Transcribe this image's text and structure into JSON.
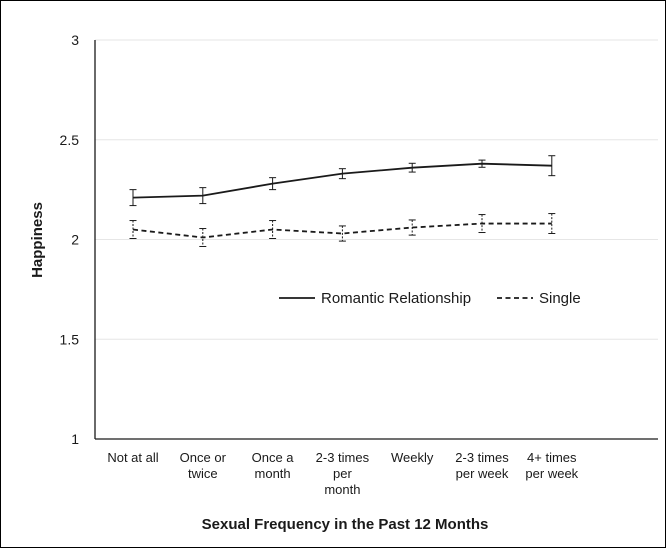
{
  "chart_data": {
    "type": "line",
    "title": "",
    "xlabel": "Sexual Frequency in the Past 12 Months",
    "ylabel": "Happiness",
    "categories": [
      [
        "Not at all"
      ],
      [
        "Once or",
        "twice"
      ],
      [
        "Once a",
        "month"
      ],
      [
        "2-3 times",
        "per",
        "month"
      ],
      [
        "Weekly"
      ],
      [
        "2-3 times",
        "per week"
      ],
      [
        "4+ times",
        "per week"
      ]
    ],
    "ylim": [
      1,
      3
    ],
    "yticks": [
      1,
      1.5,
      2,
      2.5,
      3
    ],
    "ytick_labels": [
      "1",
      "1.5",
      "2",
      "2.5",
      "3"
    ],
    "grid": true,
    "legend_position": "center-right",
    "series": [
      {
        "name": "Romantic Relationship",
        "line_style": "solid",
        "color": "#1a1a1a",
        "values": [
          2.21,
          2.22,
          2.28,
          2.33,
          2.36,
          2.38,
          2.37
        ],
        "error": [
          0.04,
          0.04,
          0.03,
          0.025,
          0.022,
          0.018,
          0.05
        ]
      },
      {
        "name": "Single",
        "line_style": "dashed",
        "color": "#1a1a1a",
        "values": [
          2.05,
          2.01,
          2.05,
          2.03,
          2.06,
          2.08,
          2.08
        ],
        "error": [
          0.045,
          0.045,
          0.045,
          0.038,
          0.038,
          0.045,
          0.05
        ]
      }
    ]
  }
}
